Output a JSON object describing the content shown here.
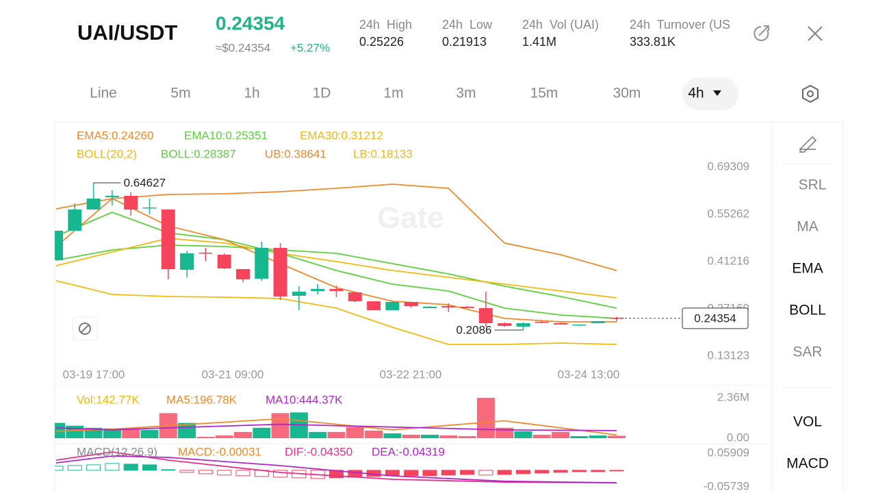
{
  "header": {
    "pair": "UAI/USDT",
    "price": "0.24354",
    "approx": "≈$0.24354",
    "change": "+5.27%",
    "stats": [
      {
        "label": "24h  High",
        "value": "0.25226"
      },
      {
        "label": "24h  Low",
        "value": "0.21913"
      },
      {
        "label": "24h  Vol (UAI)",
        "value": "1.41M"
      },
      {
        "label": "24h  Turnover (US",
        "value": "333.81K"
      }
    ]
  },
  "tabs": [
    "Line",
    "5m",
    "1h",
    "1D",
    "1m",
    "3m",
    "15m",
    "30m",
    "4h"
  ],
  "selected_tab": "4h",
  "sidebar": [
    "SRL",
    "MA",
    "EMA",
    "BOLL",
    "SAR",
    "VOL",
    "MACD"
  ],
  "sidebar_active": [
    "EMA",
    "BOLL",
    "VOL",
    "MACD"
  ],
  "chart_data": [
    {
      "type": "candlestick",
      "watermark": "Gate",
      "up_color": "#17b890",
      "down_color": "#f5445c",
      "open": [
        0.4162,
        0.5038,
        0.5669,
        0.6035,
        0.6076,
        0.571,
        0.5669,
        0.3877,
        0.4386,
        0.4325,
        0.3898,
        0.3613,
        0.4529,
        0.3104,
        0.3246,
        0.3307,
        0.3206,
        0.2941,
        0.2676,
        0.2921,
        0.2737,
        0.2798,
        0.2778,
        0.2737,
        0.2289,
        0.2188,
        0.233,
        0.2289,
        0.2228,
        0.2289,
        0.245
      ],
      "high": [
        0.5038,
        0.5852,
        0.64627,
        0.6239,
        0.6178,
        0.5994,
        0.5669,
        0.4447,
        0.4529,
        0.4366,
        0.3898,
        0.4712,
        0.4671,
        0.3389,
        0.345,
        0.3409,
        0.3226,
        0.2941,
        0.2941,
        0.2921,
        0.2798,
        0.288,
        0.2798,
        0.3226,
        0.231,
        0.231,
        0.235,
        0.231,
        0.2249,
        0.235,
        0.248
      ],
      "low": [
        0.4162,
        0.5038,
        0.5669,
        0.5791,
        0.5485,
        0.5526,
        0.3592,
        0.3653,
        0.4142,
        0.3898,
        0.3511,
        0.3552,
        0.2982,
        0.2676,
        0.3145,
        0.3063,
        0.2921,
        0.2676,
        0.2676,
        0.2758,
        0.2737,
        0.2615,
        0.2737,
        0.21863,
        0.2188,
        0.2086,
        0.2289,
        0.2249,
        0.2208,
        0.2289,
        0.235
      ],
      "close": [
        0.5038,
        0.5669,
        0.5994,
        0.6076,
        0.5669,
        0.573,
        0.3898,
        0.4366,
        0.4366,
        0.3918,
        0.3592,
        0.4529,
        0.3083,
        0.3226,
        0.3307,
        0.3246,
        0.2941,
        0.2676,
        0.2921,
        0.2798,
        0.2778,
        0.2758,
        0.2737,
        0.2289,
        0.2208,
        0.2289,
        0.231,
        0.2249,
        0.2249,
        0.235,
        0.24354
      ],
      "lines": [
        {
          "name": "UB",
          "color": "#f0892a",
          "x": [
            0,
            3,
            6,
            9,
            12,
            15,
            18,
            21,
            24,
            27,
            30
          ],
          "values": [
            0.5689,
            0.5994,
            0.6117,
            0.6137,
            0.6198,
            0.63,
            0.6422,
            0.63,
            0.4671,
            0.4325,
            0.3857
          ]
        },
        {
          "name": "LB",
          "color": "#f4b90c",
          "x": [
            0,
            3,
            6,
            9,
            12,
            15,
            18,
            21,
            24,
            27,
            30
          ],
          "values": [
            0.3552,
            0.3145,
            0.3083,
            0.3063,
            0.3022,
            0.2737,
            0.2167,
            0.1658,
            0.1658,
            0.1699,
            0.1658
          ]
        },
        {
          "name": "BOLL",
          "color": "#5bd13c",
          "x": [
            0,
            3,
            6,
            9,
            12,
            15,
            18,
            21,
            24,
            27,
            30
          ],
          "values": [
            0.4162,
            0.4468,
            0.461,
            0.457,
            0.4468,
            0.4366,
            0.4061,
            0.3755,
            0.3389,
            0.3083,
            0.2737
          ]
        },
        {
          "name": "EMA30",
          "color": "#f4b90c",
          "x": [
            0,
            3,
            6,
            9,
            12,
            15,
            18,
            21,
            24,
            27,
            30
          ],
          "values": [
            0.4,
            0.4407,
            0.4814,
            0.4671,
            0.4366,
            0.4122,
            0.3857,
            0.3653,
            0.345,
            0.3246,
            0.3043
          ]
        },
        {
          "name": "EMA10",
          "color": "#5bd13c",
          "x": [
            0,
            3,
            6,
            9,
            12,
            15,
            18,
            21,
            24,
            27,
            30
          ],
          "values": [
            0.4875,
            0.5587,
            0.4977,
            0.4773,
            0.4366,
            0.3857,
            0.345,
            0.3246,
            0.2737,
            0.2534,
            0.2432
          ]
        },
        {
          "name": "EMA5",
          "color": "#f0892a",
          "x": [
            0,
            3,
            6,
            9,
            12,
            15,
            18,
            21,
            24,
            27,
            30
          ],
          "values": [
            0.457,
            0.5994,
            0.518,
            0.4773,
            0.4061,
            0.3348,
            0.2941,
            0.2839,
            0.2432,
            0.233,
            0.233
          ]
        }
      ],
      "legend": [
        {
          "text": "EMA5:0.24260",
          "color": "#f0892a"
        },
        {
          "text": "EMA10:0.25351",
          "color": "#5bd13c"
        },
        {
          "text": "EMA30:0.31212",
          "color": "#f4b90c"
        },
        {
          "text": "BOLL(20,2)",
          "color": "#f4b90c"
        },
        {
          "text": "BOLL:0.28387",
          "color": "#5bd13c"
        },
        {
          "text": "UB:0.38641",
          "color": "#f0892a"
        },
        {
          "text": "LB:0.18133",
          "color": "#f4b90c"
        }
      ],
      "ylim": [
        0.0905,
        0.8234
      ],
      "yticks": [
        0.69309,
        0.55262,
        0.41216,
        0.27169,
        0.13123
      ],
      "xlabels": [
        "03-19 17:00",
        "03-21 09:00",
        "03-22 21:00",
        "03-24 13:00"
      ],
      "last_price": 0.24354
    },
    {
      "type": "bar",
      "values": [
        895000,
        732000,
        610000,
        570000,
        570000,
        488000,
        1465000,
        895000,
        81000,
        163000,
        366000,
        610000,
        1465000,
        1506000,
        366000,
        366000,
        651000,
        448000,
        285000,
        203000,
        203000,
        163000,
        122000,
        2360000,
        610000,
        407000,
        203000,
        366000,
        122000,
        163000,
        142770
      ],
      "lines": [
        {
          "name": "MA5",
          "color": "#f0892a",
          "x": [
            0,
            3,
            6,
            12,
            18,
            24,
            30
          ],
          "values": [
            407000,
            529000,
            732000,
            1139000,
            488000,
            1017000,
            196780
          ]
        },
        {
          "name": "MA10",
          "color": "#b026c9",
          "x": [
            0,
            3,
            6,
            12,
            18,
            24,
            30
          ],
          "values": [
            610000,
            488000,
            610000,
            814000,
            651000,
            488000,
            444370
          ]
        }
      ],
      "legend": [
        {
          "text": "Vol:142.77K",
          "color": "#f4b90c"
        },
        {
          "text": "MA5:196.78K",
          "color": "#f0892a"
        },
        {
          "text": "MA10:444.37K",
          "color": "#b026c9"
        }
      ],
      "ylim": [
        0,
        2400000
      ],
      "yticks": [
        {
          "value": 2360000,
          "label": "2.36M"
        },
        {
          "value": 0,
          "label": "0.00"
        }
      ]
    },
    {
      "type": "macd",
      "values": [
        0.0143,
        0.0166,
        0.019,
        0.0238,
        0.0214,
        0.019,
        0.0024,
        -0.0071,
        -0.0119,
        -0.0166,
        -0.019,
        -0.0214,
        -0.0238,
        -0.0261,
        -0.0285,
        -0.0261,
        -0.0238,
        -0.0214,
        -0.019,
        -0.019,
        -0.019,
        -0.0166,
        -0.0143,
        -0.0166,
        -0.0143,
        -0.0119,
        -0.0095,
        -0.0071,
        -0.0048,
        -0.0048,
        -0.00031
      ],
      "lines": [
        {
          "name": "DIF",
          "color": "#e4308a",
          "x": [
            0,
            3,
            6,
            12,
            18,
            24,
            30
          ],
          "values": [
            0.0353,
            0.0638,
            0.0353,
            -0.0075,
            -0.0312,
            -0.041,
            -0.0435
          ]
        },
        {
          "name": "DEA",
          "color": "#b026c9",
          "x": [
            0,
            3,
            6,
            12,
            18,
            24,
            30
          ],
          "values": [
            0.0258,
            0.0496,
            0.0448,
            0.0163,
            -0.0193,
            -0.038,
            -0.04319
          ]
        }
      ],
      "legend": [
        {
          "text": "MACD(12,26,9)",
          "color": "#888888"
        },
        {
          "text": "MACD:-0.00031",
          "color": "#f0892a"
        },
        {
          "text": "DIF:-0.04350",
          "color": "#e4308a"
        },
        {
          "text": "DEA:-0.04319",
          "color": "#b026c9"
        }
      ],
      "ylim": [
        -0.0669,
        0.0757
      ],
      "yticks": [
        0.05909,
        -0.05739
      ]
    }
  ]
}
